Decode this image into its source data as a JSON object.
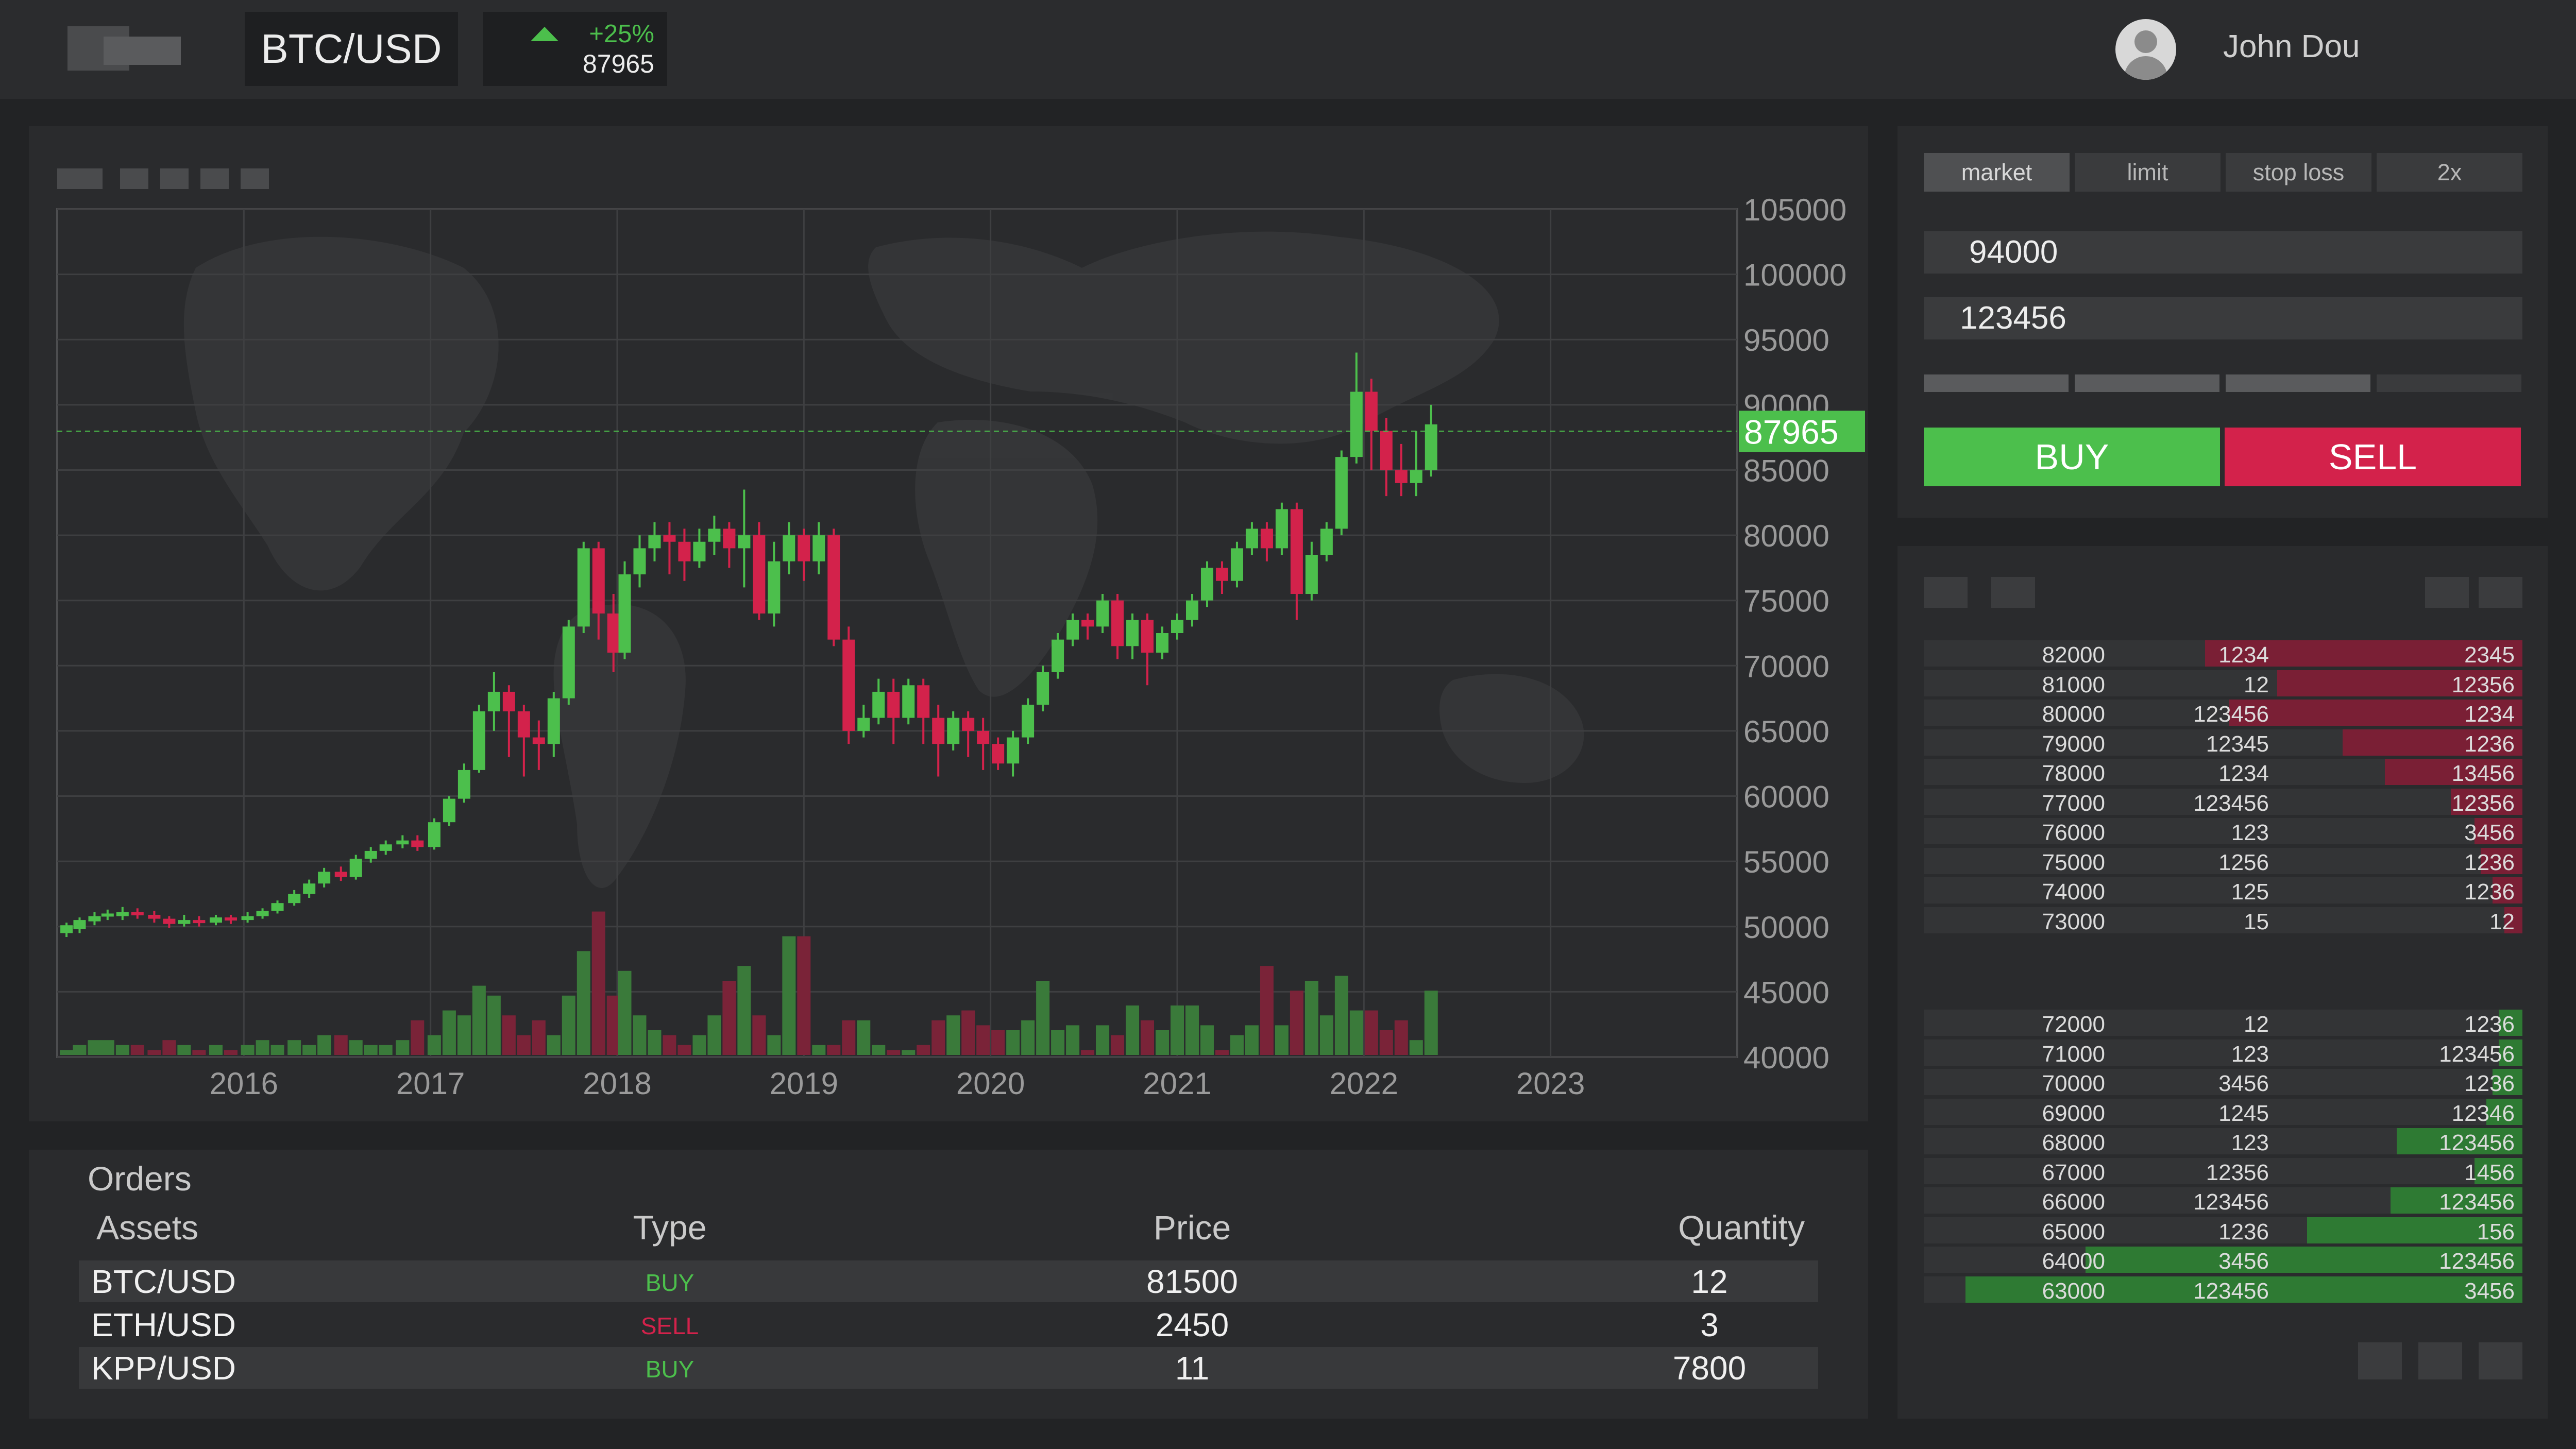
{
  "header": {
    "pair": "BTC/USD",
    "change": "+25%",
    "last_price": "87965",
    "user_name": "John Dou"
  },
  "colors": {
    "up": "#4cbf4c",
    "down": "#d3224b",
    "bg": "#222325",
    "panel": "#2a2b2d"
  },
  "icons": [
    "logo-icon",
    "arrow-up-icon",
    "user-icon"
  ],
  "chart": {
    "current_price_label": "87965",
    "current_price": 87965
  },
  "chart_data": {
    "type": "candlestick",
    "x_ticks": [
      "2016",
      "2017",
      "2018",
      "2019",
      "2020",
      "2021",
      "2022",
      "2023"
    ],
    "y_ticks": [
      "105000",
      "100000",
      "95000",
      "90000",
      "85000",
      "80000",
      "75000",
      "70000",
      "65000",
      "60000",
      "55000",
      "50000",
      "45000",
      "40000"
    ],
    "ylim": [
      40000,
      105000
    ],
    "xlim": [
      2015.0,
      2024.0
    ],
    "current_price": 87965,
    "candles": [
      [
        2015.05,
        49500,
        50100,
        49200,
        50300
      ],
      [
        2015.12,
        49800,
        50500,
        49500,
        50700
      ],
      [
        2015.2,
        50400,
        50800,
        50100,
        51100
      ],
      [
        2015.27,
        50900,
        51000,
        50500,
        51300
      ],
      [
        2015.35,
        50800,
        51100,
        50500,
        51500
      ],
      [
        2015.43,
        51100,
        50900,
        50600,
        51400
      ],
      [
        2015.52,
        50900,
        50600,
        50300,
        51200
      ],
      [
        2015.6,
        50600,
        50200,
        49900,
        50800
      ],
      [
        2015.68,
        50200,
        50500,
        50000,
        50900
      ],
      [
        2015.76,
        50500,
        50300,
        50000,
        50800
      ],
      [
        2015.85,
        50300,
        50700,
        50100,
        50900
      ],
      [
        2015.93,
        50700,
        50500,
        50200,
        50900
      ],
      [
        2016.02,
        50500,
        50800,
        50300,
        51100
      ],
      [
        2016.1,
        50800,
        51200,
        50600,
        51400
      ],
      [
        2016.18,
        51200,
        51800,
        51000,
        52000
      ],
      [
        2016.27,
        51800,
        52500,
        51600,
        52800
      ],
      [
        2016.35,
        52500,
        53300,
        52200,
        53600
      ],
      [
        2016.43,
        53300,
        54200,
        53000,
        54500
      ],
      [
        2016.52,
        54200,
        53800,
        53500,
        54600
      ],
      [
        2016.6,
        53800,
        55200,
        53600,
        55500
      ],
      [
        2016.68,
        55200,
        55800,
        54900,
        56100
      ],
      [
        2016.76,
        55800,
        56300,
        55500,
        56600
      ],
      [
        2016.85,
        56300,
        56600,
        56000,
        57000
      ],
      [
        2016.93,
        56600,
        56100,
        55800,
        57000
      ],
      [
        2017.02,
        56100,
        58000,
        55900,
        58300
      ],
      [
        2017.1,
        58000,
        59800,
        57700,
        60000
      ],
      [
        2017.18,
        59800,
        62000,
        59500,
        62500
      ],
      [
        2017.26,
        62000,
        66500,
        61800,
        67000
      ],
      [
        2017.34,
        66500,
        68000,
        65000,
        69500
      ],
      [
        2017.42,
        68000,
        66500,
        63000,
        68500
      ],
      [
        2017.5,
        66500,
        64500,
        61500,
        67000
      ],
      [
        2017.58,
        64500,
        64000,
        62000,
        65800
      ],
      [
        2017.66,
        64000,
        67500,
        63000,
        68000
      ],
      [
        2017.74,
        67500,
        73000,
        67000,
        73500
      ],
      [
        2017.82,
        73000,
        79000,
        72500,
        79500
      ],
      [
        2017.9,
        79000,
        74000,
        72000,
        79500
      ],
      [
        2017.98,
        74000,
        71000,
        69500,
        75500
      ],
      [
        2018.04,
        71000,
        77000,
        70500,
        78000
      ],
      [
        2018.12,
        77000,
        79000,
        76000,
        80000
      ],
      [
        2018.2,
        79000,
        80000,
        78000,
        81000
      ],
      [
        2018.28,
        80000,
        79500,
        77000,
        81000
      ],
      [
        2018.36,
        79500,
        78000,
        76500,
        80500
      ],
      [
        2018.44,
        78000,
        79500,
        77500,
        80500
      ],
      [
        2018.52,
        79500,
        80500,
        78500,
        81500
      ],
      [
        2018.6,
        80500,
        79000,
        77500,
        81000
      ],
      [
        2018.68,
        79000,
        80000,
        76000,
        83500
      ],
      [
        2018.76,
        80000,
        74000,
        73500,
        81000
      ],
      [
        2018.84,
        74000,
        78000,
        73000,
        79500
      ],
      [
        2018.92,
        78000,
        80000,
        77000,
        81000
      ],
      [
        2019.0,
        80000,
        78000,
        76500,
        80500
      ],
      [
        2019.08,
        78000,
        80000,
        77000,
        81000
      ],
      [
        2019.16,
        80000,
        72000,
        71500,
        80500
      ],
      [
        2019.24,
        72000,
        65000,
        64000,
        73000
      ],
      [
        2019.32,
        65000,
        66000,
        64500,
        67000
      ],
      [
        2019.4,
        66000,
        68000,
        65500,
        69000
      ],
      [
        2019.48,
        68000,
        66000,
        64000,
        69000
      ],
      [
        2019.56,
        66000,
        68500,
        65500,
        69000
      ],
      [
        2019.64,
        68500,
        66000,
        64000,
        69000
      ],
      [
        2019.72,
        66000,
        64000,
        61500,
        67000
      ],
      [
        2019.8,
        64000,
        66000,
        63500,
        66500
      ],
      [
        2019.88,
        66000,
        65000,
        63000,
        66500
      ],
      [
        2019.96,
        65000,
        64000,
        62000,
        66000
      ],
      [
        2020.04,
        64000,
        62500,
        62000,
        64500
      ],
      [
        2020.12,
        62500,
        64500,
        61500,
        65000
      ],
      [
        2020.2,
        64500,
        67000,
        64000,
        67500
      ],
      [
        2020.28,
        67000,
        69500,
        66500,
        70000
      ],
      [
        2020.36,
        69500,
        72000,
        69000,
        72500
      ],
      [
        2020.44,
        72000,
        73500,
        71500,
        74000
      ],
      [
        2020.52,
        73500,
        73000,
        72000,
        74000
      ],
      [
        2020.6,
        73000,
        75000,
        72500,
        75500
      ],
      [
        2020.68,
        75000,
        71500,
        70500,
        75500
      ],
      [
        2020.76,
        71500,
        73500,
        70500,
        74000
      ],
      [
        2020.84,
        73500,
        71000,
        68500,
        74000
      ],
      [
        2020.92,
        71000,
        72500,
        70500,
        73000
      ],
      [
        2021.0,
        72500,
        73500,
        72000,
        74000
      ],
      [
        2021.08,
        73500,
        75000,
        73000,
        75500
      ],
      [
        2021.16,
        75000,
        77500,
        74500,
        78000
      ],
      [
        2021.24,
        77500,
        76500,
        75500,
        78000
      ],
      [
        2021.32,
        76500,
        79000,
        76000,
        79500
      ],
      [
        2021.4,
        79000,
        80500,
        78500,
        81000
      ],
      [
        2021.48,
        80500,
        79000,
        78000,
        81000
      ],
      [
        2021.56,
        79000,
        82000,
        78500,
        82500
      ],
      [
        2021.64,
        82000,
        75500,
        73500,
        82500
      ],
      [
        2021.72,
        75500,
        78500,
        75000,
        79500
      ],
      [
        2021.8,
        78500,
        80500,
        78000,
        81000
      ],
      [
        2021.88,
        80500,
        86000,
        80000,
        86500
      ],
      [
        2021.96,
        86000,
        91000,
        85500,
        94000
      ],
      [
        2022.04,
        91000,
        88000,
        85000,
        92000
      ],
      [
        2022.12,
        88000,
        85000,
        83000,
        89000
      ],
      [
        2022.2,
        85000,
        84000,
        83000,
        87000
      ],
      [
        2022.28,
        84000,
        85000,
        83000,
        88000
      ],
      [
        2022.36,
        85000,
        88500,
        84500,
        90000
      ]
    ],
    "volume": [
      [
        2015.05,
        1
      ],
      [
        2015.12,
        2
      ],
      [
        2015.2,
        3
      ],
      [
        2015.27,
        3
      ],
      [
        2015.35,
        2
      ],
      [
        2015.43,
        2
      ],
      [
        2015.52,
        1
      ],
      [
        2015.6,
        3
      ],
      [
        2015.68,
        2
      ],
      [
        2015.76,
        1
      ],
      [
        2015.85,
        2
      ],
      [
        2015.93,
        1
      ],
      [
        2016.02,
        2
      ],
      [
        2016.1,
        3
      ],
      [
        2016.18,
        2
      ],
      [
        2016.27,
        3
      ],
      [
        2016.35,
        2
      ],
      [
        2016.43,
        4
      ],
      [
        2016.52,
        4
      ],
      [
        2016.6,
        3
      ],
      [
        2016.68,
        2
      ],
      [
        2016.76,
        2
      ],
      [
        2016.85,
        3
      ],
      [
        2016.93,
        7
      ],
      [
        2017.02,
        4
      ],
      [
        2017.1,
        9
      ],
      [
        2017.18,
        8
      ],
      [
        2017.26,
        14
      ],
      [
        2017.34,
        12
      ],
      [
        2017.42,
        8
      ],
      [
        2017.5,
        4
      ],
      [
        2017.58,
        7
      ],
      [
        2017.66,
        4
      ],
      [
        2017.74,
        12
      ],
      [
        2017.82,
        21
      ],
      [
        2017.9,
        29
      ],
      [
        2017.98,
        12
      ],
      [
        2018.04,
        17
      ],
      [
        2018.12,
        8
      ],
      [
        2018.2,
        5
      ],
      [
        2018.28,
        4
      ],
      [
        2018.36,
        2
      ],
      [
        2018.44,
        4
      ],
      [
        2018.52,
        8
      ],
      [
        2018.6,
        15
      ],
      [
        2018.68,
        18
      ],
      [
        2018.76,
        8
      ],
      [
        2018.84,
        4
      ],
      [
        2018.92,
        24
      ],
      [
        2019.0,
        24
      ],
      [
        2019.08,
        2
      ],
      [
        2019.16,
        2
      ],
      [
        2019.24,
        7
      ],
      [
        2019.32,
        7
      ],
      [
        2019.4,
        2
      ],
      [
        2019.48,
        1
      ],
      [
        2019.56,
        1
      ],
      [
        2019.64,
        2
      ],
      [
        2019.72,
        7
      ],
      [
        2019.8,
        8
      ],
      [
        2019.88,
        9
      ],
      [
        2019.96,
        6
      ],
      [
        2020.04,
        5
      ],
      [
        2020.12,
        5
      ],
      [
        2020.2,
        7
      ],
      [
        2020.28,
        15
      ],
      [
        2020.36,
        5
      ],
      [
        2020.44,
        6
      ],
      [
        2020.52,
        1
      ],
      [
        2020.6,
        6
      ],
      [
        2020.68,
        4
      ],
      [
        2020.76,
        10
      ],
      [
        2020.84,
        7
      ],
      [
        2020.92,
        5
      ],
      [
        2021.0,
        10
      ],
      [
        2021.08,
        10
      ],
      [
        2021.16,
        6
      ],
      [
        2021.24,
        1
      ],
      [
        2021.32,
        4
      ],
      [
        2021.4,
        6
      ],
      [
        2021.48,
        18
      ],
      [
        2021.56,
        6
      ],
      [
        2021.64,
        13
      ],
      [
        2021.72,
        15
      ],
      [
        2021.8,
        8
      ],
      [
        2021.88,
        16
      ],
      [
        2021.96,
        9
      ],
      [
        2022.04,
        9
      ],
      [
        2022.12,
        5
      ],
      [
        2022.2,
        7
      ],
      [
        2022.28,
        3
      ],
      [
        2022.36,
        13
      ]
    ]
  },
  "trade": {
    "tabs": [
      "market",
      "limit",
      "stop loss",
      "2x"
    ],
    "active_tab": "market",
    "price_value": "94000",
    "amount_value": "123456",
    "slider_steps_filled": 3,
    "slider_steps_total": 4,
    "buy_label": "BUY",
    "sell_label": "SELL"
  },
  "orderbook": {
    "asks": [
      {
        "price": "82000",
        "qty": "1234",
        "total": "2345",
        "depth": 0.53
      },
      {
        "price": "81000",
        "qty": "12",
        "total": "12356",
        "depth": 0.41
      },
      {
        "price": "80000",
        "qty": "123456",
        "total": "1234",
        "depth": 0.49
      },
      {
        "price": "79000",
        "qty": "12345",
        "total": "1236",
        "depth": 0.3
      },
      {
        "price": "78000",
        "qty": "1234",
        "total": "13456",
        "depth": 0.23
      },
      {
        "price": "77000",
        "qty": "123456",
        "total": "12356",
        "depth": 0.12
      },
      {
        "price": "76000",
        "qty": "123",
        "total": "3456",
        "depth": 0.08
      },
      {
        "price": "75000",
        "qty": "1256",
        "total": "1236",
        "depth": 0.07
      },
      {
        "price": "74000",
        "qty": "125",
        "total": "1236",
        "depth": 0.05
      },
      {
        "price": "73000",
        "qty": "15",
        "total": "12",
        "depth": 0.03
      }
    ],
    "bids": [
      {
        "price": "72000",
        "qty": "12",
        "total": "1236",
        "depth": 0.04
      },
      {
        "price": "71000",
        "qty": "123",
        "total": "123456",
        "depth": 0.04
      },
      {
        "price": "70000",
        "qty": "3456",
        "total": "1236",
        "depth": 0.05
      },
      {
        "price": "69000",
        "qty": "1245",
        "total": "12346",
        "depth": 0.06
      },
      {
        "price": "68000",
        "qty": "123",
        "total": "123456",
        "depth": 0.21
      },
      {
        "price": "67000",
        "qty": "12356",
        "total": "1456",
        "depth": 0.08
      },
      {
        "price": "66000",
        "qty": "123456",
        "total": "123456",
        "depth": 0.22
      },
      {
        "price": "65000",
        "qty": "1236",
        "total": "156",
        "depth": 0.36
      },
      {
        "price": "64000",
        "qty": "3456",
        "total": "123456",
        "depth": 0.73
      },
      {
        "price": "63000",
        "qty": "123456",
        "total": "3456",
        "depth": 0.93
      }
    ]
  },
  "orders": {
    "title": "Orders",
    "headers": [
      "Assets",
      "Type",
      "Price",
      "Quantity"
    ],
    "rows": [
      {
        "asset": "BTC/USD",
        "type": "BUY",
        "price": "81500",
        "qty": "12"
      },
      {
        "asset": "ETH/USD",
        "type": "SELL",
        "price": "2450",
        "qty": "3"
      },
      {
        "asset": "KPP/USD",
        "type": "BUY",
        "price": "11",
        "qty": "7800"
      }
    ]
  }
}
